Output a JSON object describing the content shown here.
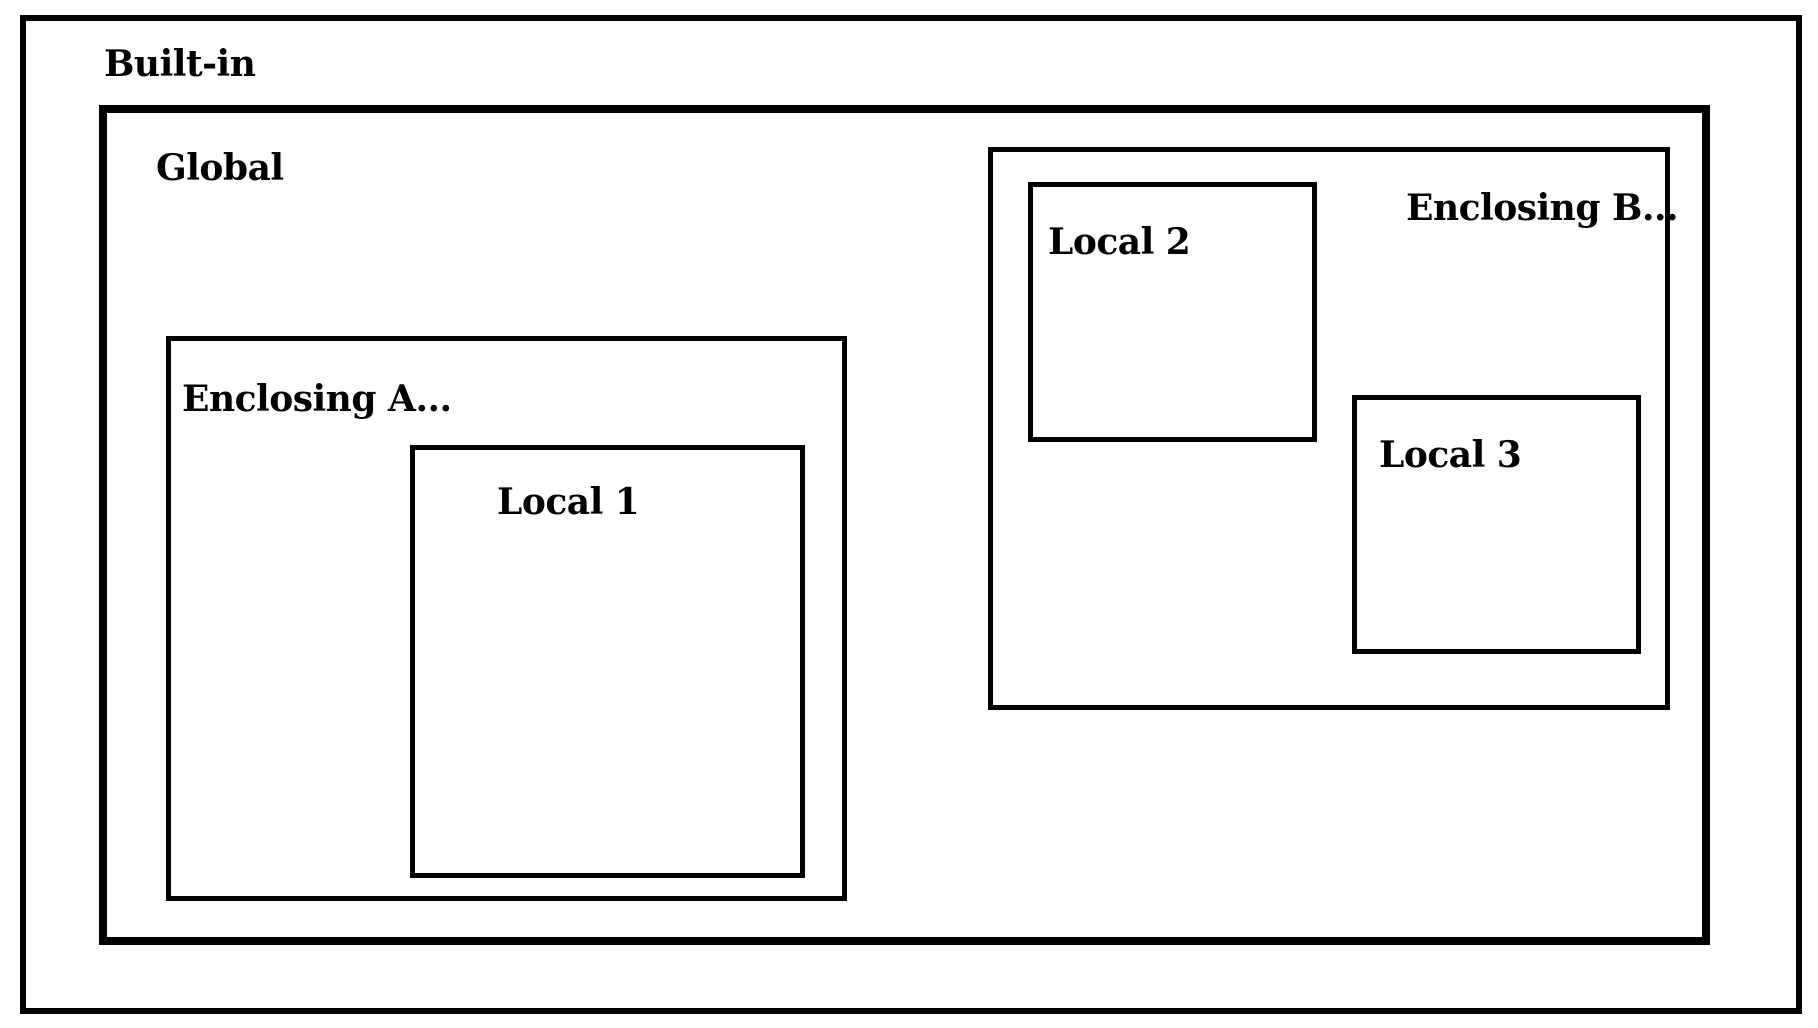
{
  "scopes": {
    "builtin": {
      "label": "Built-in"
    },
    "global": {
      "label": "Global"
    },
    "enclosing_a": {
      "label": "Enclosing A..."
    },
    "local_1": {
      "label": "Local 1"
    },
    "enclosing_b": {
      "label": "Enclosing B..."
    },
    "local_2": {
      "label": "Local 2"
    },
    "local_3": {
      "label": "Local 3"
    }
  },
  "colors": {
    "border": "#000000",
    "background": "#ffffff",
    "text": "#000000"
  }
}
